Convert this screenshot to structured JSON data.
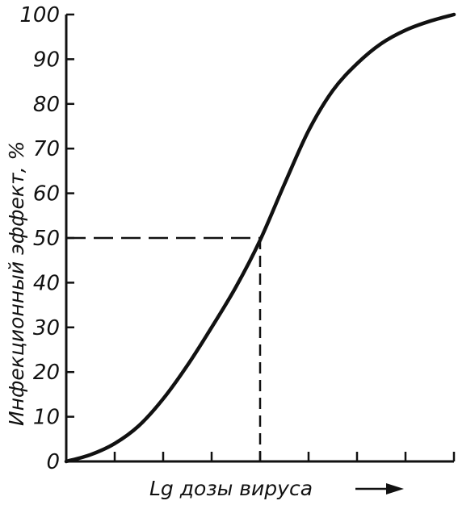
{
  "chart_data": {
    "type": "line",
    "title": "",
    "xlabel": "Lg дозы вируса",
    "ylabel": "Инфекционный эффект, %",
    "ylim": [
      0,
      100
    ],
    "yticks": [
      0,
      10,
      20,
      30,
      40,
      50,
      60,
      70,
      80,
      90,
      100
    ],
    "xlim": [
      0,
      8
    ],
    "xticks_count": 8,
    "grid": false,
    "series": [
      {
        "x": [
          0,
          0.5,
          1,
          1.5,
          2,
          2.5,
          3,
          3.5,
          4,
          4.5,
          5,
          5.5,
          6,
          6.5,
          7,
          7.5,
          8
        ],
        "y": [
          0,
          1.5,
          4,
          8,
          14,
          21.5,
          30,
          39,
          49.5,
          62,
          74,
          83,
          89,
          93.5,
          96.5,
          98.5,
          100
        ]
      }
    ],
    "reference": {
      "y": 50,
      "x": 4,
      "style": "dashed"
    },
    "colors": {
      "line": "#111111",
      "axis": "#111111"
    }
  }
}
